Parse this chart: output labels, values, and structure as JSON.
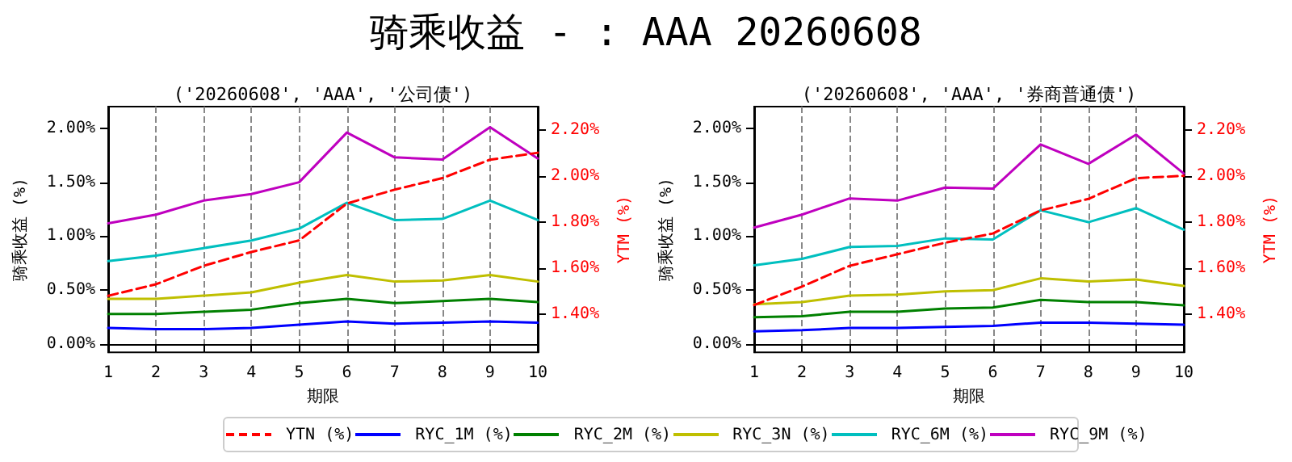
{
  "chart_data": [
    {
      "type": "line",
      "title": "骑乘收益 - : AAA 20260608",
      "subtitle": "('20260608', 'AAA', '公司债')",
      "xlabel": "期限",
      "ylabel": "骑乘收益 (%)",
      "y2label": "YTM (%)",
      "x": [
        1,
        2,
        3,
        4,
        5,
        6,
        7,
        8,
        9,
        10
      ],
      "xlim": [
        1,
        10
      ],
      "xticks": [
        1,
        2,
        3,
        4,
        5,
        6,
        7,
        8,
        9,
        10
      ],
      "ylim": [
        -0.075,
        2.2
      ],
      "yticks": [
        {
          "value": 0,
          "label": "0.00%"
        },
        {
          "value": 0.5,
          "label": "0.50%"
        },
        {
          "value": 1,
          "label": "1.00%"
        },
        {
          "value": 1.5,
          "label": "1.50%"
        },
        {
          "value": 2,
          "label": "2.00%"
        }
      ],
      "y2lim": [
        1.235,
        2.3
      ],
      "y2ticks": [
        {
          "value": 1.4,
          "label": "1.40%"
        },
        {
          "value": 1.6,
          "label": "1.60%"
        },
        {
          "value": 1.8,
          "label": "1.80%"
        },
        {
          "value": 2.0,
          "label": "2.00%"
        },
        {
          "value": 2.2,
          "label": "2.20%"
        }
      ],
      "grid": "x",
      "legend": "bottom",
      "marker": "none",
      "line_style": "solid",
      "series": [
        {
          "name": "YTN (%)",
          "color": "#ff0000",
          "axis": "y2",
          "line_style": "dashed",
          "values": [
            1.48,
            1.53,
            1.61,
            1.67,
            1.72,
            1.88,
            1.94,
            1.99,
            2.07,
            2.1
          ]
        },
        {
          "name": "RYC_1M (%)",
          "color": "#0000ff",
          "values": [
            0.15,
            0.14,
            0.14,
            0.15,
            0.18,
            0.21,
            0.19,
            0.2,
            0.21,
            0.2
          ]
        },
        {
          "name": "RYC_2M (%)",
          "color": "#008000",
          "values": [
            0.28,
            0.28,
            0.3,
            0.32,
            0.38,
            0.42,
            0.38,
            0.4,
            0.42,
            0.39
          ]
        },
        {
          "name": "RYC_3N (%)",
          "color": "#bfbf00",
          "values": [
            0.42,
            0.42,
            0.45,
            0.48,
            0.57,
            0.64,
            0.58,
            0.59,
            0.64,
            0.58
          ]
        },
        {
          "name": "RYC_6M (%)",
          "color": "#00bfbf",
          "values": [
            0.77,
            0.82,
            0.89,
            0.96,
            1.07,
            1.31,
            1.15,
            1.16,
            1.33,
            1.15
          ]
        },
        {
          "name": "RYC_9M (%)",
          "color": "#bf00bf",
          "values": [
            1.12,
            1.2,
            1.33,
            1.39,
            1.5,
            1.96,
            1.73,
            1.71,
            2.01,
            1.72
          ]
        }
      ]
    },
    {
      "type": "line",
      "subtitle": "('20260608', 'AAA', '券商普通债')",
      "xlabel": "期限",
      "ylabel": "骑乘收益 (%)",
      "y2label": "YTM (%)",
      "x": [
        1,
        2,
        3,
        4,
        5,
        6,
        7,
        8,
        9,
        10
      ],
      "xlim": [
        1,
        10
      ],
      "xticks": [
        1,
        2,
        3,
        4,
        5,
        6,
        7,
        8,
        9,
        10
      ],
      "ylim": [
        -0.075,
        2.2
      ],
      "yticks": [
        {
          "value": 0,
          "label": "0.00%"
        },
        {
          "value": 0.5,
          "label": "0.50%"
        },
        {
          "value": 1,
          "label": "1.00%"
        },
        {
          "value": 1.5,
          "label": "1.50%"
        },
        {
          "value": 2,
          "label": "2.00%"
        }
      ],
      "y2lim": [
        1.235,
        2.3
      ],
      "y2ticks": [
        {
          "value": 1.4,
          "label": "1.40%"
        },
        {
          "value": 1.6,
          "label": "1.60%"
        },
        {
          "value": 1.8,
          "label": "1.80%"
        },
        {
          "value": 2.0,
          "label": "2.00%"
        },
        {
          "value": 2.2,
          "label": "2.20%"
        }
      ],
      "grid": "x",
      "marker": "none",
      "line_style": "solid",
      "series": [
        {
          "color": "#ff0000",
          "axis": "y2",
          "line_style": "dashed",
          "values": [
            1.44,
            1.52,
            1.61,
            1.66,
            1.71,
            1.75,
            1.85,
            1.9,
            1.99,
            2.0
          ]
        },
        {
          "color": "#0000ff",
          "values": [
            0.12,
            0.13,
            0.15,
            0.15,
            0.16,
            0.17,
            0.2,
            0.2,
            0.19,
            0.18
          ]
        },
        {
          "color": "#008000",
          "values": [
            0.25,
            0.26,
            0.3,
            0.3,
            0.33,
            0.34,
            0.41,
            0.39,
            0.39,
            0.36
          ]
        },
        {
          "color": "#bfbf00",
          "values": [
            0.37,
            0.39,
            0.45,
            0.46,
            0.49,
            0.5,
            0.61,
            0.58,
            0.6,
            0.54
          ]
        },
        {
          "color": "#00bfbf",
          "values": [
            0.73,
            0.79,
            0.9,
            0.91,
            0.98,
            0.97,
            1.24,
            1.13,
            1.26,
            1.06
          ]
        },
        {
          "color": "#bf00bf",
          "values": [
            1.08,
            1.2,
            1.35,
            1.33,
            1.45,
            1.44,
            1.85,
            1.67,
            1.94,
            1.58
          ]
        }
      ]
    }
  ]
}
